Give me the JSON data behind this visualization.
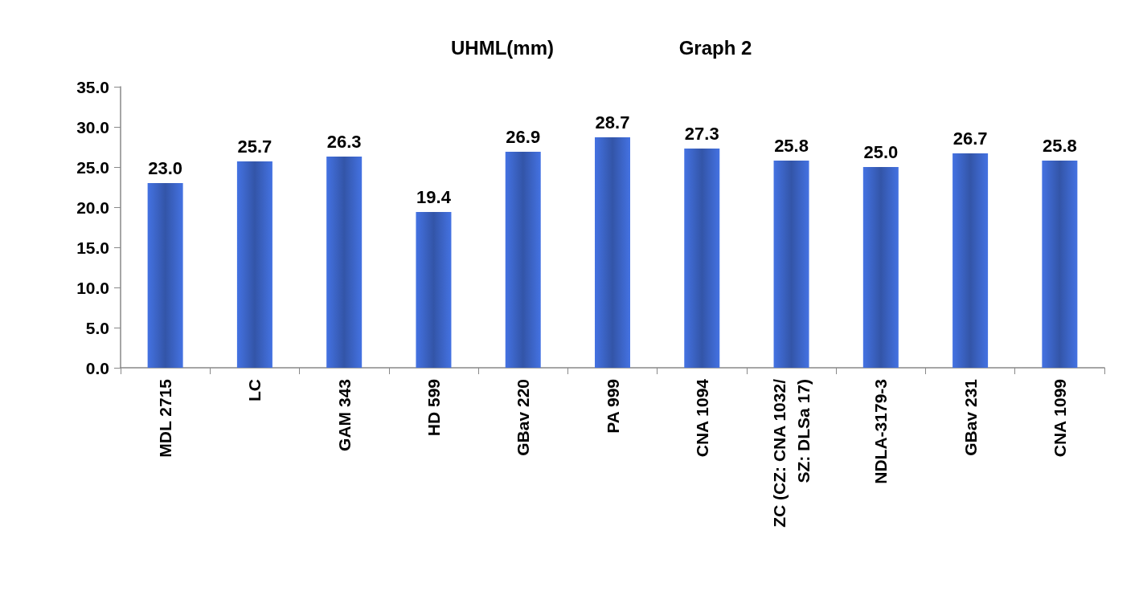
{
  "chart_data": {
    "type": "bar",
    "title": "UHML(mm)",
    "subtitle": "Graph 2",
    "categories": [
      "MDL 2715",
      "LC",
      "GAM 343",
      "HD 599",
      "GBav 220",
      "PA 999",
      "CNA 1094",
      "ZC (CZ: CNA 1032/ SZ: DLSa 17)",
      "NDLA-3179-3",
      "GBav 231",
      "CNA 1099"
    ],
    "values": [
      23.0,
      25.7,
      26.3,
      19.4,
      26.9,
      28.7,
      27.3,
      25.8,
      25.0,
      26.7,
      25.8
    ],
    "color": "#3355a8",
    "ylim": [
      0,
      35
    ],
    "yticks": [
      {
        "value": 0,
        "label": "0.0"
      },
      {
        "value": 5,
        "label": "5.0"
      },
      {
        "value": 10,
        "label": "10.0"
      },
      {
        "value": 15,
        "label": "15.0"
      },
      {
        "value": 20,
        "label": "20.0"
      },
      {
        "value": 25,
        "label": "25.0"
      },
      {
        "value": 30,
        "label": "30.0"
      },
      {
        "value": 35,
        "label": "35.0"
      }
    ],
    "value_labels": [
      "23.0",
      "25.7",
      "26.3",
      "19.4",
      "26.9",
      "28.7",
      "27.3",
      "25.8",
      "25.0",
      "26.7",
      "25.8"
    ],
    "grid": false
  }
}
